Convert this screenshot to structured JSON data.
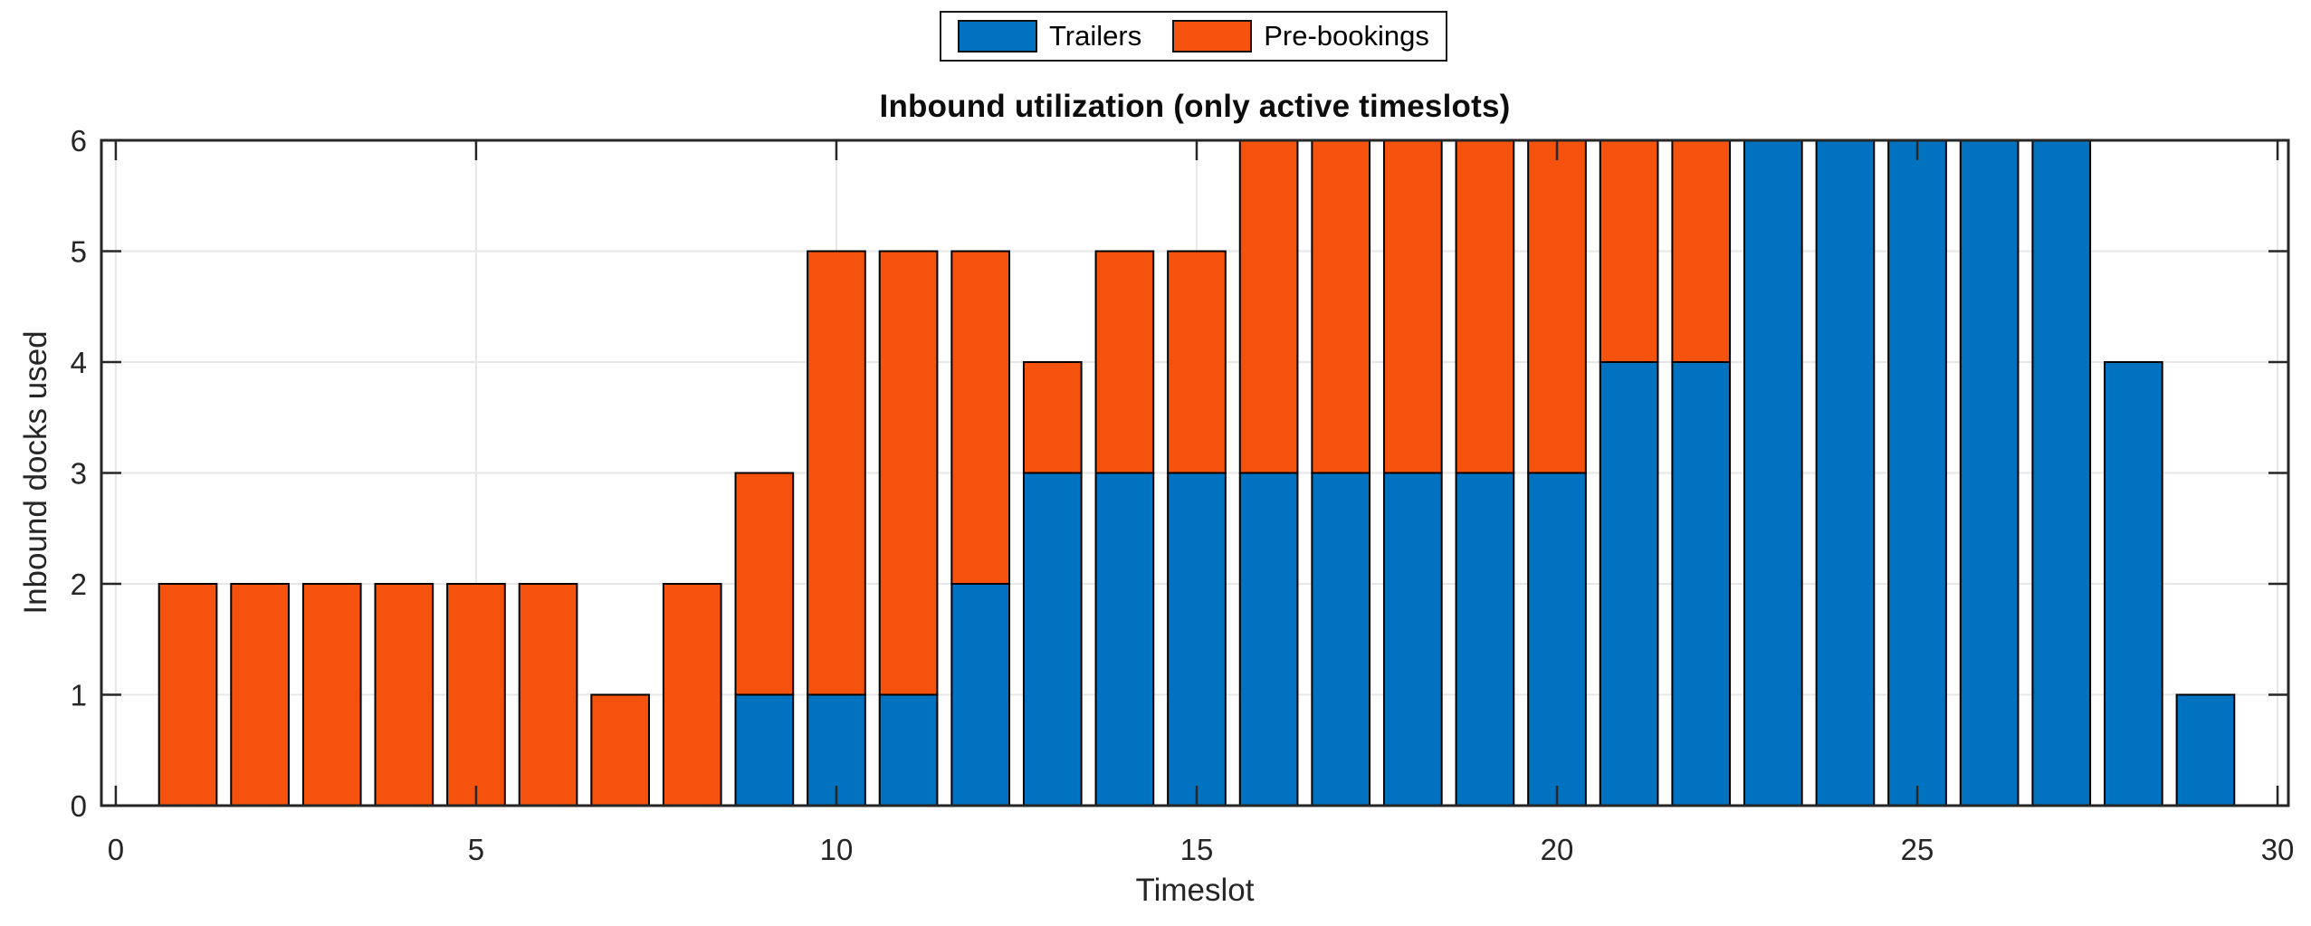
{
  "title": "Inbound utilization (only active timeslots)",
  "axes": {
    "xlabel": "Timeslot",
    "ylabel": "Inbound docks used"
  },
  "legend": {
    "items": [
      {
        "label": "Trailers",
        "color": "#0072BF"
      },
      {
        "label": "Pre-bookings",
        "color": "#F4520D"
      }
    ]
  },
  "colors": {
    "trailers_blue": "#0072BF",
    "prebookings_orange": "#F4520D",
    "axis": "#262626",
    "grid": "#E7E7E7",
    "bar_outline": "#000000",
    "background": "#FFFFFF"
  },
  "chart_data": {
    "type": "bar",
    "stacked": true,
    "title": "Inbound utilization (only active timeslots)",
    "xlabel": "Timeslot",
    "ylabel": "Inbound docks used",
    "categories": [
      1,
      2,
      3,
      4,
      5,
      6,
      7,
      8,
      9,
      10,
      11,
      12,
      13,
      14,
      15,
      16,
      17,
      18,
      19,
      20,
      21,
      22,
      23,
      24,
      25,
      26,
      27,
      28,
      29
    ],
    "series": [
      {
        "name": "Trailers",
        "color": "#0072BF",
        "values": [
          0,
          0,
          0,
          0,
          0,
          0,
          0,
          0,
          1,
          1,
          1,
          2,
          3,
          3,
          3,
          3,
          3,
          3,
          3,
          3,
          4,
          4,
          6,
          6,
          6,
          6,
          6,
          4,
          1
        ]
      },
      {
        "name": "Pre-bookings",
        "color": "#F4520D",
        "values": [
          2,
          2,
          2,
          2,
          2,
          2,
          1,
          2,
          2,
          4,
          4,
          3,
          1,
          2,
          2,
          3,
          3,
          3,
          3,
          3,
          2,
          2,
          0,
          0,
          0,
          0,
          0,
          0,
          0
        ]
      }
    ],
    "totals": [
      2,
      2,
      2,
      2,
      2,
      2,
      1,
      2,
      3,
      5,
      5,
      5,
      4,
      5,
      5,
      6,
      6,
      6,
      6,
      6,
      6,
      6,
      6,
      6,
      6,
      6,
      6,
      4,
      1
    ],
    "xlim": [
      -0.2,
      30.15
    ],
    "ylim": [
      0,
      6
    ],
    "xticks": [
      0,
      5,
      10,
      15,
      20,
      25,
      30
    ],
    "yticks": [
      0,
      1,
      2,
      3,
      4,
      5,
      6
    ],
    "bar_width": 0.8,
    "grid": true,
    "legend_position": "top-center-outside"
  }
}
